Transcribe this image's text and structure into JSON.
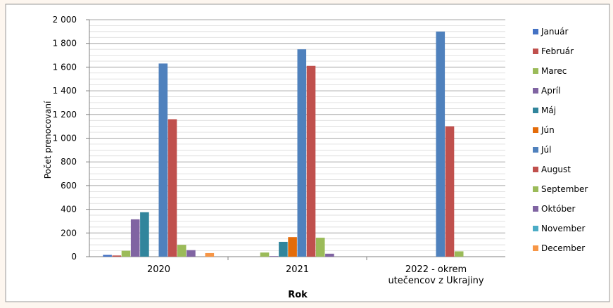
{
  "chart_data": {
    "type": "bar",
    "title": "",
    "xlabel": "Rok",
    "ylabel": "Počet prenocovaní",
    "ylim": [
      0,
      2000
    ],
    "yticks": [
      "0",
      "200",
      "400",
      "600",
      "800",
      "1 000",
      "1 200",
      "1 400",
      "1 600",
      "1 800",
      "2 000"
    ],
    "categories": [
      "2020",
      "2021",
      "2022 - okrem utečencov z Ukrajiny"
    ],
    "legend_position": "right",
    "grid": true,
    "series": [
      {
        "name": "Január",
        "color": "#4472c4",
        "values": [
          15,
          0,
          0
        ]
      },
      {
        "name": "Február",
        "color": "#c0504d",
        "values": [
          10,
          0,
          0
        ]
      },
      {
        "name": "Marec",
        "color": "#9bbb59",
        "values": [
          50,
          35,
          0
        ]
      },
      {
        "name": "Apríl",
        "color": "#8064a2",
        "values": [
          315,
          5,
          0
        ]
      },
      {
        "name": "Máj",
        "color": "#31859c",
        "values": [
          375,
          125,
          0
        ]
      },
      {
        "name": "Jún",
        "color": "#e46c0a",
        "values": [
          0,
          165,
          0
        ]
      },
      {
        "name": "Júl",
        "color": "#4f81bd",
        "values": [
          1630,
          1750,
          1900
        ]
      },
      {
        "name": "August",
        "color": "#c0504d",
        "values": [
          1160,
          1610,
          1100
        ]
      },
      {
        "name": "September",
        "color": "#9bbb59",
        "values": [
          100,
          160,
          45
        ]
      },
      {
        "name": "Október",
        "color": "#8064a2",
        "values": [
          55,
          25,
          0
        ]
      },
      {
        "name": "November",
        "color": "#4bacc6",
        "values": [
          0,
          0,
          0
        ]
      },
      {
        "name": "December",
        "color": "#f79646",
        "values": [
          30,
          0,
          0
        ]
      }
    ]
  }
}
